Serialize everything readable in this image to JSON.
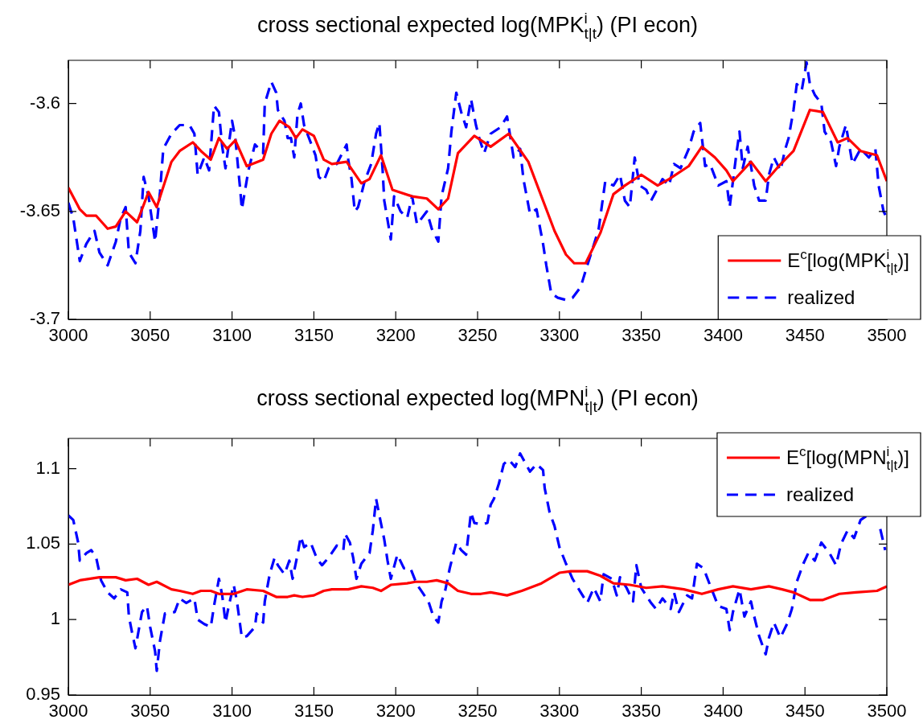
{
  "chart_data": [
    {
      "type": "line",
      "title": "cross sectional expected log(MPK$^{i}$$_{t|t}$) (PI econ)",
      "xlim": [
        3000,
        3500
      ],
      "xticks": [
        3000,
        3050,
        3100,
        3150,
        3200,
        3250,
        3300,
        3350,
        3400,
        3450,
        3500
      ],
      "ylim": [
        -3.7,
        -3.58
      ],
      "yticks": [
        -3.7,
        -3.65,
        -3.6
      ],
      "legend": "bottom right",
      "series": [
        {
          "name": "E$^{c}$[log(MPK$^{i}$$_{t|t}$)]",
          "color": "#ff0000",
          "line_style": "solid",
          "x": [
            3000,
            3007,
            3011,
            3017,
            3024,
            3029,
            3035,
            3042,
            3049,
            3054,
            3063,
            3068,
            3076,
            3081,
            3087,
            3092,
            3097,
            3102,
            3109,
            3119,
            3124,
            3129,
            3135,
            3139,
            3143,
            3150,
            3156,
            3161,
            3170,
            3179,
            3184,
            3191,
            3198,
            3210,
            3219,
            3226,
            3232,
            3238,
            3248,
            3258,
            3269,
            3281,
            3287,
            3297,
            3304,
            3309,
            3316,
            3325,
            3333,
            3340,
            3350,
            3360,
            3367,
            3379,
            3387,
            3395,
            3402,
            3406,
            3417,
            3426,
            3434,
            3443,
            3453,
            3461,
            3470,
            3476,
            3484,
            3494,
            3500
          ],
          "values": [
            -3.639,
            -3.649,
            -3.652,
            -3.652,
            -3.658,
            -3.657,
            -3.65,
            -3.655,
            -3.641,
            -3.648,
            -3.627,
            -3.622,
            -3.618,
            -3.622,
            -3.626,
            -3.616,
            -3.621,
            -3.617,
            -3.629,
            -3.626,
            -3.614,
            -3.608,
            -3.611,
            -3.616,
            -3.612,
            -3.615,
            -3.626,
            -3.628,
            -3.627,
            -3.637,
            -3.635,
            -3.624,
            -3.64,
            -3.643,
            -3.644,
            -3.649,
            -3.644,
            -3.623,
            -3.615,
            -3.62,
            -3.614,
            -3.627,
            -3.639,
            -3.659,
            -3.67,
            -3.674,
            -3.674,
            -3.66,
            -3.642,
            -3.638,
            -3.633,
            -3.638,
            -3.635,
            -3.629,
            -3.62,
            -3.625,
            -3.631,
            -3.636,
            -3.627,
            -3.636,
            -3.629,
            -3.622,
            -3.603,
            -3.604,
            -3.618,
            -3.616,
            -3.622,
            -3.624,
            -3.636
          ]
        },
        {
          "name": "realized",
          "color": "#0000ff",
          "line_style": "dashed",
          "x": [
            3000,
            3003,
            3007,
            3011,
            3016,
            3019,
            3024,
            3029,
            3032,
            3035,
            3037,
            3041,
            3044,
            3046,
            3049,
            3053,
            3056,
            3058,
            3063,
            3068,
            3074,
            3077,
            3079,
            3083,
            3086,
            3089,
            3092,
            3094,
            3096,
            3100,
            3102,
            3105,
            3106,
            3110,
            3114,
            3119,
            3120,
            3124,
            3127,
            3128,
            3132,
            3134,
            3136,
            3138,
            3140,
            3142,
            3144,
            3146,
            3151,
            3153,
            3156,
            3159,
            3164,
            3170,
            3171,
            3173,
            3175,
            3177,
            3181,
            3185,
            3188,
            3190,
            3192,
            3193,
            3197,
            3199,
            3203,
            3207,
            3210,
            3213,
            3219,
            3222,
            3226,
            3228,
            3232,
            3234,
            3237,
            3240,
            3243,
            3246,
            3249,
            3251,
            3254,
            3258,
            3264,
            3268,
            3272,
            3276,
            3278,
            3282,
            3286,
            3290,
            3292,
            3295,
            3299,
            3304,
            3308,
            3313,
            3317,
            3320,
            3324,
            3328,
            3333,
            3337,
            3340,
            3343,
            3346,
            3349,
            3353,
            3356,
            3363,
            3367,
            3370,
            3374,
            3379,
            3382,
            3386,
            3389,
            3392,
            3397,
            3402,
            3404,
            3408,
            3410,
            3412,
            3415,
            3419,
            3422,
            3426,
            3428,
            3431,
            3435,
            3438,
            3440,
            3443,
            3445,
            3448,
            3451,
            3453,
            3456,
            3460,
            3462,
            3466,
            3469,
            3471,
            3475,
            3479,
            3484,
            3489,
            3493,
            3495,
            3498,
            3500
          ],
          "values": [
            -3.646,
            -3.653,
            -3.673,
            -3.665,
            -3.659,
            -3.669,
            -3.675,
            -3.664,
            -3.653,
            -3.648,
            -3.669,
            -3.674,
            -3.659,
            -3.634,
            -3.643,
            -3.664,
            -3.641,
            -3.621,
            -3.614,
            -3.61,
            -3.61,
            -3.614,
            -3.633,
            -3.625,
            -3.631,
            -3.601,
            -3.604,
            -3.62,
            -3.63,
            -3.608,
            -3.616,
            -3.64,
            -3.649,
            -3.631,
            -3.619,
            -3.623,
            -3.6,
            -3.59,
            -3.595,
            -3.603,
            -3.608,
            -3.616,
            -3.616,
            -3.625,
            -3.605,
            -3.6,
            -3.61,
            -3.614,
            -3.624,
            -3.634,
            -3.636,
            -3.63,
            -3.628,
            -3.619,
            -3.626,
            -3.635,
            -3.65,
            -3.648,
            -3.636,
            -3.628,
            -3.614,
            -3.609,
            -3.631,
            -3.645,
            -3.663,
            -3.643,
            -3.65,
            -3.653,
            -3.643,
            -3.656,
            -3.65,
            -3.658,
            -3.664,
            -3.643,
            -3.63,
            -3.613,
            -3.595,
            -3.604,
            -3.611,
            -3.598,
            -3.61,
            -3.616,
            -3.623,
            -3.614,
            -3.611,
            -3.606,
            -3.625,
            -3.621,
            -3.635,
            -3.651,
            -3.649,
            -3.665,
            -3.675,
            -3.688,
            -3.69,
            -3.691,
            -3.69,
            -3.685,
            -3.675,
            -3.668,
            -3.658,
            -3.636,
            -3.638,
            -3.633,
            -3.645,
            -3.648,
            -3.625,
            -3.638,
            -3.64,
            -3.645,
            -3.635,
            -3.638,
            -3.628,
            -3.63,
            -3.621,
            -3.613,
            -3.609,
            -3.629,
            -3.628,
            -3.638,
            -3.636,
            -3.648,
            -3.624,
            -3.613,
            -3.63,
            -3.62,
            -3.638,
            -3.645,
            -3.645,
            -3.633,
            -3.625,
            -3.631,
            -3.621,
            -3.616,
            -3.603,
            -3.591,
            -3.594,
            -3.581,
            -3.591,
            -3.596,
            -3.6,
            -3.613,
            -3.618,
            -3.629,
            -3.62,
            -3.61,
            -3.628,
            -3.621,
            -3.625,
            -3.621,
            -3.638,
            -3.65,
            -3.653
          ]
        }
      ]
    },
    {
      "type": "line",
      "title": "cross sectional expected log(MPN$^{i}$$_{t|t}$) (PI econ)",
      "xlim": [
        3000,
        3500
      ],
      "xticks": [
        3000,
        3050,
        3100,
        3150,
        3200,
        3250,
        3300,
        3350,
        3400,
        3450,
        3500
      ],
      "ylim": [
        0.95,
        1.12
      ],
      "yticks": [
        0.95,
        1,
        1.05,
        1.1
      ],
      "legend": "top right",
      "series": [
        {
          "name": "E$^{c}$[log(MPN$^{i}$$_{t|t}$)]",
          "color": "#ff0000",
          "line_style": "solid",
          "x": [
            3000,
            3007,
            3019,
            3029,
            3035,
            3042,
            3049,
            3054,
            3063,
            3068,
            3076,
            3081,
            3087,
            3092,
            3101,
            3109,
            3119,
            3127,
            3134,
            3138,
            3143,
            3150,
            3156,
            3161,
            3171,
            3179,
            3186,
            3191,
            3197,
            3207,
            3212,
            3219,
            3225,
            3232,
            3238,
            3246,
            3252,
            3258,
            3268,
            3277,
            3289,
            3300,
            3307,
            3317,
            3325,
            3333,
            3343,
            3353,
            3363,
            3376,
            3387,
            3397,
            3406,
            3417,
            3428,
            3436,
            3443,
            3453,
            3461,
            3471,
            3481,
            3494,
            3500
          ],
          "values": [
            1.023,
            1.026,
            1.028,
            1.028,
            1.026,
            1.027,
            1.023,
            1.025,
            1.02,
            1.019,
            1.017,
            1.019,
            1.019,
            1.017,
            1.017,
            1.02,
            1.019,
            1.015,
            1.015,
            1.016,
            1.015,
            1.016,
            1.019,
            1.02,
            1.02,
            1.022,
            1.021,
            1.019,
            1.023,
            1.024,
            1.025,
            1.025,
            1.026,
            1.024,
            1.019,
            1.017,
            1.017,
            1.018,
            1.016,
            1.019,
            1.024,
            1.031,
            1.032,
            1.032,
            1.029,
            1.024,
            1.023,
            1.021,
            1.022,
            1.02,
            1.017,
            1.02,
            1.022,
            1.02,
            1.022,
            1.02,
            1.018,
            1.013,
            1.013,
            1.017,
            1.018,
            1.019,
            1.022
          ]
        },
        {
          "name": "realized",
          "color": "#0000ff",
          "line_style": "dashed",
          "x": [
            3000,
            3003,
            3006,
            3007,
            3011,
            3014,
            3017,
            3020,
            3024,
            3028,
            3032,
            3036,
            3037,
            3039,
            3041,
            3043,
            3045,
            3048,
            3050,
            3053,
            3054,
            3056,
            3059,
            3065,
            3068,
            3072,
            3077,
            3079,
            3083,
            3087,
            3089,
            3092,
            3094,
            3096,
            3098,
            3101,
            3103,
            3106,
            3109,
            3114,
            3115,
            3119,
            3120,
            3123,
            3126,
            3128,
            3132,
            3135,
            3137,
            3140,
            3142,
            3144,
            3148,
            3152,
            3155,
            3159,
            3164,
            3168,
            3169,
            3172,
            3174,
            3176,
            3179,
            3184,
            3186,
            3188,
            3190,
            3193,
            3195,
            3197,
            3201,
            3205,
            3209,
            3213,
            3215,
            3220,
            3223,
            3226,
            3228,
            3230,
            3233,
            3237,
            3240,
            3243,
            3246,
            3248,
            3253,
            3256,
            3258,
            3260,
            3263,
            3266,
            3269,
            3273,
            3276,
            3278,
            3282,
            3286,
            3290,
            3291,
            3294,
            3297,
            3300,
            3304,
            3308,
            3313,
            3317,
            3321,
            3325,
            3327,
            3332,
            3335,
            3337,
            3341,
            3345,
            3347,
            3350,
            3356,
            3359,
            3363,
            3368,
            3370,
            3373,
            3378,
            3381,
            3384,
            3388,
            3393,
            3397,
            3402,
            3404,
            3406,
            3410,
            3413,
            3417,
            3419,
            3422,
            3426,
            3428,
            3431,
            3435,
            3439,
            3442,
            3445,
            3449,
            3452,
            3456,
            3460,
            3465,
            3469,
            3472,
            3476,
            3480,
            3484,
            3488,
            3491,
            3493,
            3496,
            3499
          ],
          "values": [
            1.069,
            1.066,
            1.051,
            1.039,
            1.044,
            1.046,
            1.041,
            1.026,
            1.018,
            1.014,
            1.02,
            1.018,
            1.002,
            0.991,
            0.981,
            0.993,
            1.005,
            1.009,
            0.995,
            0.979,
            0.966,
            0.986,
            1.004,
            1.005,
            1.014,
            1.011,
            1.014,
            1,
            0.997,
            0.995,
            1.009,
            1.027,
            1.016,
            0.998,
            1.009,
            1.023,
            1.012,
            0.988,
            0.989,
            0.995,
            1.004,
            0.998,
            1.012,
            1.03,
            1.041,
            1.036,
            1.03,
            1.039,
            1.027,
            1.043,
            1.055,
            1.048,
            1.051,
            1.04,
            1.036,
            1.041,
            1.049,
            1.046,
            1.057,
            1.051,
            1.041,
            1.027,
            1.037,
            1.044,
            1.059,
            1.08,
            1.069,
            1.053,
            1.039,
            1.027,
            1.043,
            1.034,
            1.034,
            1.023,
            1.02,
            1.012,
            1.002,
            0.998,
            1.012,
            1.018,
            1.034,
            1.051,
            1.046,
            1.043,
            1.071,
            1.064,
            1.063,
            1.064,
            1.076,
            1.08,
            1.09,
            1.103,
            1.106,
            1.101,
            1.11,
            1.106,
            1.098,
            1.103,
            1.099,
            1.087,
            1.071,
            1.062,
            1.048,
            1.037,
            1.027,
            1.018,
            1.011,
            1.021,
            1.012,
            1.03,
            1.027,
            1.016,
            1.028,
            1.021,
            1.012,
            1.036,
            1.021,
            1.011,
            1.007,
            1.014,
            1.007,
            1.018,
            1.005,
            1.016,
            1.014,
            1.037,
            1.034,
            1.02,
            1.009,
            1.007,
            0.993,
            1.005,
            1.02,
            1.002,
            1.012,
            1.002,
            0.989,
            0.977,
            0.988,
            0.998,
            0.988,
            0.997,
            1.007,
            1.025,
            1.037,
            1.044,
            1.039,
            1.051,
            1.044,
            1.036,
            1.05,
            1.059,
            1.054,
            1.066,
            1.069,
            1.067,
            null,
            1.06,
            1.046
          ]
        }
      ]
    }
  ]
}
